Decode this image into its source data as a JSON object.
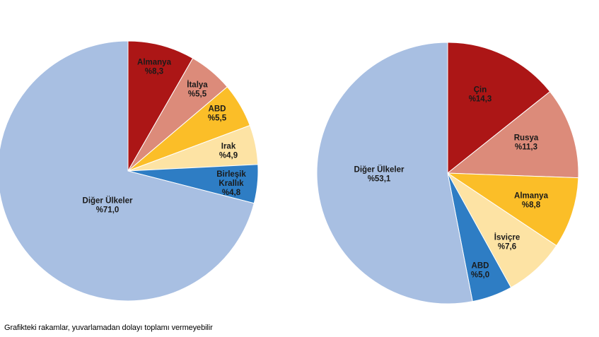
{
  "chart_data": [
    {
      "type": "pie",
      "slices": [
        {
          "label": [
            "Almanya",
            "%8,3"
          ],
          "value": 8.3,
          "color": "#ac1616"
        },
        {
          "label": [
            "İtalya",
            "%5,5"
          ],
          "value": 5.5,
          "color": "#dc8b7a"
        },
        {
          "label": [
            "ABD",
            "%5,5"
          ],
          "value": 5.5,
          "color": "#fbbe28"
        },
        {
          "label": [
            "Irak",
            "%4,9"
          ],
          "value": 4.9,
          "color": "#fde3a4"
        },
        {
          "label": [
            "Birleşik",
            "Krallık",
            "%4,8"
          ],
          "value": 4.8,
          "color": "#2e7dc4"
        },
        {
          "label": [
            "Diğer Ülkeler",
            "%71,0"
          ],
          "value": 71.0,
          "color": "#a8bfe2"
        }
      ]
    },
    {
      "type": "pie",
      "slices": [
        {
          "label": [
            "Çin",
            "%14,3"
          ],
          "value": 14.3,
          "color": "#ac1616"
        },
        {
          "label": [
            "Rusya",
            "%11,3"
          ],
          "value": 11.3,
          "color": "#dc8b7a"
        },
        {
          "label": [
            "Almanya",
            "%8,8"
          ],
          "value": 8.8,
          "color": "#fbbe28"
        },
        {
          "label": [
            "İsviçre",
            "%7,6"
          ],
          "value": 7.6,
          "color": "#fde3a4"
        },
        {
          "label": [
            "ABD",
            "%5,0"
          ],
          "value": 5.0,
          "color": "#2e7dc4"
        },
        {
          "label": [
            "Diğer Ülkeler",
            "%53,1"
          ],
          "value": 53.1,
          "color": "#a8bfe2"
        }
      ]
    }
  ],
  "footnote": "Grafikteki rakamlar, yuvarlamadan dolayı toplamı vermeyebilir"
}
